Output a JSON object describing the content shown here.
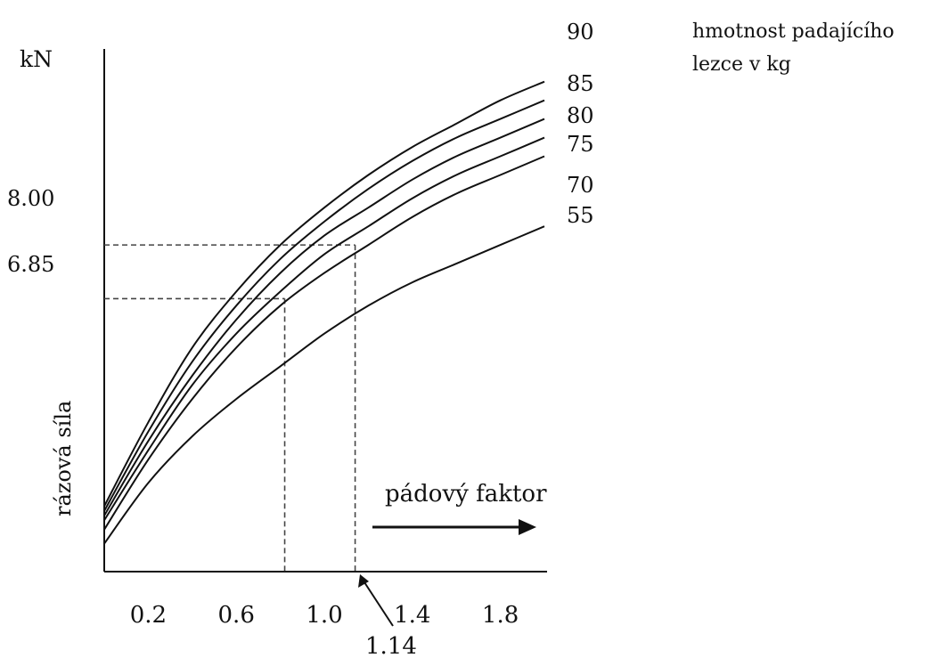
{
  "chart_data": {
    "type": "line",
    "y_unit": "kN",
    "ylabel": "rázová síla",
    "xlabel": "pádový faktor",
    "legend_title_line1": "hmotnost padajícího",
    "legend_title_line2": "lezce v kg",
    "x_ticks": [
      "0.2",
      "0.6",
      "1.0",
      "1.4",
      "1.8"
    ],
    "y_ticks": [
      "8.00",
      "6.85"
    ],
    "annotation_x": "1.14",
    "xlim": [
      0.0,
      2.0
    ],
    "ylim": [
      1.0,
      12.2
    ],
    "series": [
      {
        "name": "90",
        "x": [
          0.0,
          0.2,
          0.4,
          0.6,
          0.8,
          1.0,
          1.2,
          1.4,
          1.6,
          1.8,
          2.0
        ],
        "values": [
          2.4,
          4.2,
          5.8,
          7.0,
          8.0,
          8.8,
          9.5,
          10.1,
          10.6,
          11.1,
          11.5
        ]
      },
      {
        "name": "85",
        "x": [
          0.0,
          0.2,
          0.4,
          0.6,
          0.8,
          1.0,
          1.2,
          1.4,
          1.6,
          1.8,
          2.0
        ],
        "values": [
          2.3,
          4.0,
          5.5,
          6.7,
          7.7,
          8.5,
          9.2,
          9.8,
          10.3,
          10.7,
          11.1
        ]
      },
      {
        "name": "80",
        "x": [
          0.0,
          0.2,
          0.4,
          0.6,
          0.8,
          1.0,
          1.2,
          1.4,
          1.6,
          1.8,
          2.0
        ],
        "values": [
          2.2,
          3.8,
          5.2,
          6.4,
          7.4,
          8.2,
          8.8,
          9.4,
          9.9,
          10.3,
          10.7
        ]
      },
      {
        "name": "75",
        "x": [
          0.0,
          0.2,
          0.4,
          0.6,
          0.8,
          1.0,
          1.2,
          1.4,
          1.6,
          1.8,
          2.0
        ],
        "values": [
          2.1,
          3.6,
          5.0,
          6.1,
          7.0,
          7.8,
          8.4,
          9.0,
          9.5,
          9.9,
          10.3
        ]
      },
      {
        "name": "70",
        "x": [
          0.0,
          0.2,
          0.4,
          0.6,
          0.8,
          1.0,
          1.2,
          1.4,
          1.6,
          1.8,
          2.0
        ],
        "values": [
          1.9,
          3.4,
          4.7,
          5.8,
          6.7,
          7.4,
          8.0,
          8.6,
          9.1,
          9.5,
          9.9
        ]
      },
      {
        "name": "55",
        "x": [
          0.0,
          0.2,
          0.4,
          0.6,
          0.8,
          1.0,
          1.2,
          1.4,
          1.6,
          1.8,
          2.0
        ],
        "values": [
          1.6,
          2.9,
          3.9,
          4.7,
          5.4,
          6.1,
          6.7,
          7.2,
          7.6,
          8.0,
          8.4
        ]
      }
    ],
    "guides": [
      {
        "x": 0.82,
        "y": 6.85
      },
      {
        "x": 1.14,
        "y": 8.0
      }
    ],
    "grid": false,
    "legend": "curve labels at right end"
  }
}
